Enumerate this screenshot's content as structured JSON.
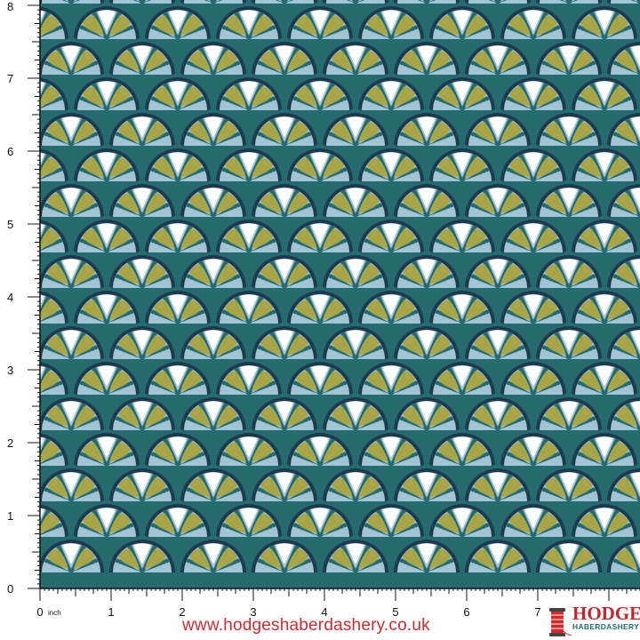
{
  "ruler": {
    "unit": "inch",
    "vertical_labels": [
      "0",
      "1",
      "2",
      "3",
      "4",
      "5",
      "6",
      "7",
      "8"
    ],
    "horizontal_labels": [
      "0",
      "1",
      "2",
      "3",
      "4",
      "5",
      "6",
      "7"
    ]
  },
  "footer": {
    "url": "www.hodgeshaberdashery.co.uk"
  },
  "logo": {
    "main": "HODGES",
    "sub": "HABERDASHERY"
  },
  "pattern": {
    "name": "art-deco-fan-scales",
    "colors": {
      "teal": "#256b6e",
      "navy": "#1e3a4e",
      "light_blue": "#a2c4d5",
      "olive": "#a9a648",
      "white": "#ffffff"
    }
  },
  "colors": {
    "url": "#d42a2a",
    "logo_red": "#c8242c",
    "logo_teal": "#256b6e"
  }
}
